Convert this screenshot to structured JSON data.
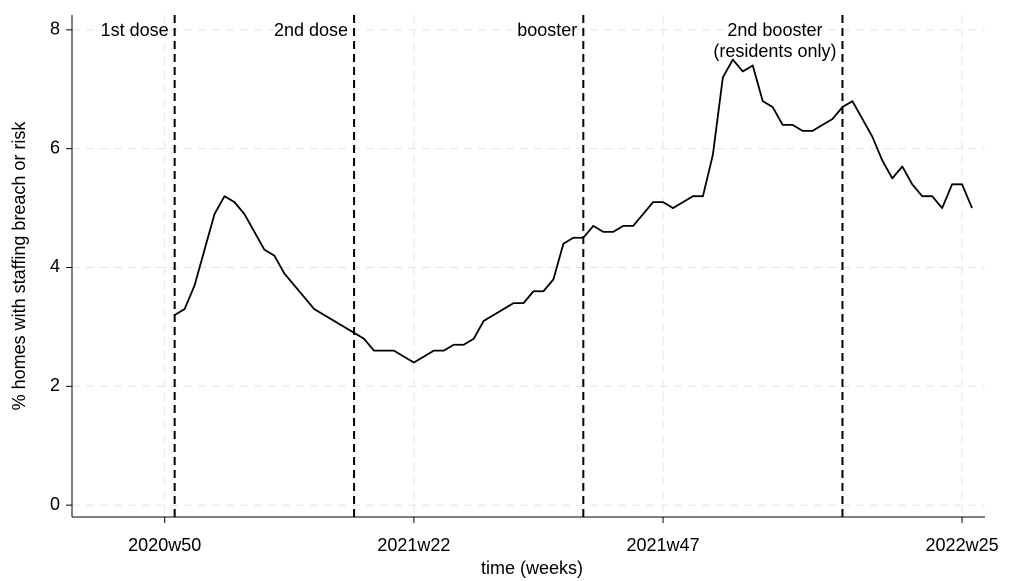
{
  "chart_data": {
    "type": "line",
    "xlabel": "time (weeks)",
    "ylabel": "% homes with staffing breach or risk",
    "xlim": [
      -9.3,
      82.3
    ],
    "ylim": [
      -0.2,
      8.25
    ],
    "xticks": [
      {
        "value": 0,
        "label": "2020w50"
      },
      {
        "value": 25,
        "label": "2021w22"
      },
      {
        "value": 50,
        "label": "2021w47"
      },
      {
        "value": 80,
        "label": "2022w25"
      }
    ],
    "yticks": [
      0,
      2,
      4,
      6,
      8
    ],
    "grid": true,
    "vlines": [
      {
        "x": 1,
        "label": [
          "1st dose"
        ]
      },
      {
        "x": 19,
        "label": [
          "2nd dose"
        ]
      },
      {
        "x": 42,
        "label": [
          "booster"
        ]
      },
      {
        "x": 68,
        "label": [
          "2nd booster",
          "(residents only)"
        ]
      }
    ],
    "x": [
      1,
      2,
      3,
      4,
      5,
      6,
      7,
      8,
      9,
      10,
      11,
      12,
      13,
      14,
      15,
      16,
      17,
      18,
      19,
      20,
      21,
      22,
      23,
      24,
      25,
      26,
      27,
      28,
      29,
      30,
      31,
      32,
      33,
      34,
      35,
      36,
      37,
      38,
      39,
      40,
      41,
      42,
      43,
      44,
      45,
      46,
      47,
      48,
      49,
      50,
      51,
      52,
      53,
      54,
      55,
      56,
      57,
      58,
      59,
      60,
      61,
      62,
      63,
      64,
      65,
      66,
      67,
      68,
      69,
      70,
      71,
      72,
      73,
      74,
      75,
      76,
      77,
      78,
      79,
      80,
      81
    ],
    "series": [
      {
        "color": "#000000",
        "values": [
          3.2,
          3.3,
          3.7,
          4.3,
          4.9,
          5.2,
          5.1,
          4.9,
          4.6,
          4.3,
          4.2,
          3.9,
          3.7,
          3.5,
          3.3,
          3.2,
          3.1,
          3.0,
          2.9,
          2.8,
          2.6,
          2.6,
          2.6,
          2.5,
          2.4,
          2.5,
          2.6,
          2.6,
          2.7,
          2.7,
          2.8,
          3.1,
          3.2,
          3.3,
          3.4,
          3.4,
          3.6,
          3.6,
          3.8,
          4.4,
          4.5,
          4.5,
          4.7,
          4.6,
          4.6,
          4.7,
          4.7,
          4.9,
          5.1,
          5.1,
          5.0,
          5.1,
          5.2,
          5.2,
          5.9,
          7.2,
          7.5,
          7.3,
          7.4,
          6.8,
          6.7,
          6.4,
          6.4,
          6.3,
          6.3,
          6.4,
          6.5,
          6.7,
          6.8,
          6.5,
          6.2,
          5.8,
          5.5,
          5.7,
          5.4,
          5.2,
          5.2,
          5.0,
          5.4,
          5.4,
          5.0
        ]
      }
    ]
  }
}
